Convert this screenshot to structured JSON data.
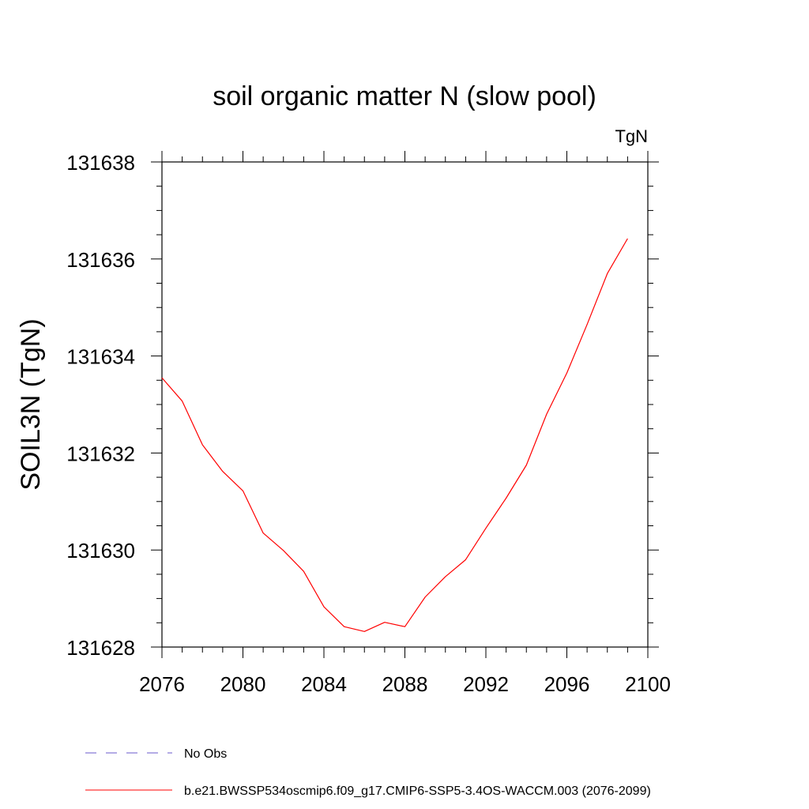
{
  "chart_data": {
    "type": "line",
    "title": "soil organic matter N (slow pool)",
    "units": "TgN",
    "ylabel": "SOIL3N  (TgN)",
    "xlabel": "",
    "xlim": [
      2076,
      2100
    ],
    "ylim": [
      131628,
      131638
    ],
    "x_ticks": [
      2076,
      2080,
      2084,
      2088,
      2092,
      2096,
      2100
    ],
    "y_ticks": [
      131628,
      131630,
      131632,
      131634,
      131636,
      131638
    ],
    "x_tick_labels": [
      "2076",
      "2080",
      "2084",
      "2088",
      "2092",
      "2096",
      "2100"
    ],
    "y_tick_labels": [
      "131628",
      "131630",
      "131632",
      "131634",
      "131636",
      "131638"
    ],
    "x_minor_step": 1,
    "y_minor_step": 0.5,
    "series": [
      {
        "name": "b.e21.BWSSP534oscmip6.f09_g17.CMIP6-SSP5-3.4OS-WACCM.003 (2076-2099)",
        "color": "#ff0000",
        "style": "solid",
        "x": [
          2076,
          2077,
          2078,
          2079,
          2080,
          2081,
          2082,
          2083,
          2084,
          2085,
          2086,
          2087,
          2088,
          2089,
          2090,
          2091,
          2092,
          2093,
          2094,
          2095,
          2096,
          2097,
          2098,
          2099
        ],
        "y": [
          131633.55,
          131633.07,
          131632.17,
          131631.62,
          131631.22,
          131630.35,
          131629.99,
          131629.56,
          131628.83,
          131628.42,
          131628.32,
          131628.51,
          131628.42,
          131629.03,
          131629.45,
          131629.8,
          131630.45,
          131631.07,
          131631.75,
          131632.8,
          131633.65,
          131634.65,
          131635.7,
          131636.42
        ]
      }
    ],
    "legend": [
      {
        "label": "No Obs",
        "color": "#6a5acd",
        "style": "dashed"
      },
      {
        "label": "b.e21.BWSSP534oscmip6.f09_g17.CMIP6-SSP5-3.4OS-WACCM.003 (2076-2099)",
        "color": "#ff0000",
        "style": "solid"
      }
    ],
    "legend_position": "bottom-left",
    "grid": false
  }
}
